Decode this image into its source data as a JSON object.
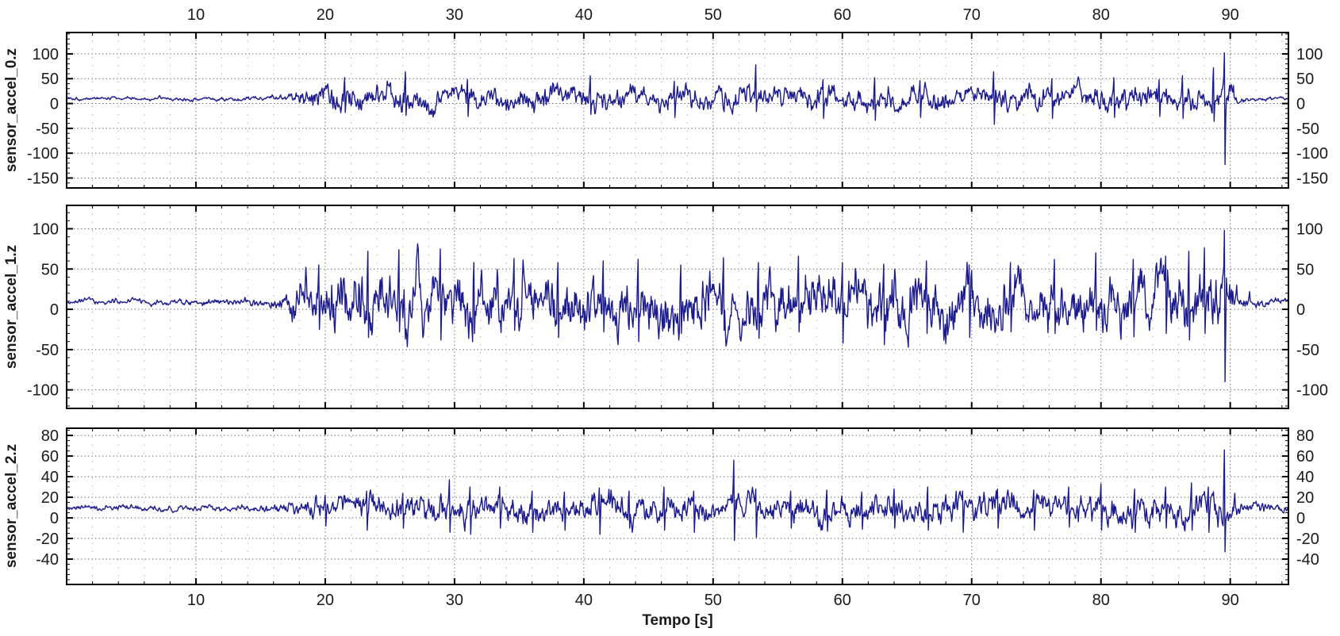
{
  "style": {
    "background": "#ffffff",
    "axis_color": "#000000",
    "text_color": "#1a1a1a",
    "grid_minor_color": "#a3a3a3",
    "grid_major_color": "#5a5a5a",
    "trace_color": "#1b1b8f"
  },
  "chart_data": {
    "type": "line",
    "title": "",
    "xlabel": "Tempo [s]",
    "sample_step_s": 0.05,
    "x": {
      "min": 0,
      "max": 94.5,
      "major_step": 10,
      "minor_step": 2,
      "tick_labels": [
        10,
        20,
        30,
        40,
        50,
        60,
        70,
        80,
        90
      ],
      "top_labels_shown": true,
      "bottom_labels_shown": true
    },
    "panels": [
      {
        "ylabel": "sensor_accel_0.z",
        "ylim": [
          -170,
          143
        ],
        "yticks": [
          100,
          50,
          0,
          -50,
          -100,
          -150
        ],
        "ytick_minor_step": 10,
        "baseline": 10,
        "seed": 101,
        "envelope": [
          [
            0,
            3
          ],
          [
            13,
            3.5
          ],
          [
            15.5,
            4.5
          ],
          [
            17,
            8
          ],
          [
            18.5,
            20
          ],
          [
            21,
            24
          ],
          [
            26,
            22
          ],
          [
            32,
            20
          ],
          [
            38,
            22
          ],
          [
            45,
            21
          ],
          [
            52,
            20
          ],
          [
            58,
            22
          ],
          [
            65,
            21
          ],
          [
            72,
            22
          ],
          [
            80,
            21
          ],
          [
            86,
            22
          ],
          [
            88.5,
            26
          ],
          [
            89.3,
            30
          ],
          [
            90,
            26
          ],
          [
            90.6,
            7
          ],
          [
            91.5,
            3.5
          ],
          [
            94.5,
            3
          ]
        ],
        "events": [
          [
            21.5,
            52,
            -18
          ],
          [
            26.2,
            64,
            -24
          ],
          [
            31,
            48,
            -26
          ],
          [
            40.5,
            56,
            -22
          ],
          [
            47,
            45,
            -28
          ],
          [
            53.3,
            78,
            -16
          ],
          [
            58.5,
            48,
            -30
          ],
          [
            62.5,
            52,
            -34
          ],
          [
            66,
            46,
            -28
          ],
          [
            71.7,
            64,
            -42
          ],
          [
            76.2,
            50,
            -30
          ],
          [
            81,
            52,
            -28
          ],
          [
            84.5,
            48,
            -26
          ],
          [
            86.3,
            56,
            -30
          ],
          [
            88.7,
            72,
            -36
          ],
          [
            89.55,
            102,
            -123
          ],
          [
            90.25,
            36,
            12
          ]
        ]
      },
      {
        "ylabel": "sensor_accel_1.z",
        "ylim": [
          -123,
          129
        ],
        "yticks": [
          100,
          50,
          0,
          -50,
          -100
        ],
        "ytick_minor_step": 10,
        "baseline": 9,
        "seed": 202,
        "envelope": [
          [
            0,
            3
          ],
          [
            13,
            3.5
          ],
          [
            15.5,
            5
          ],
          [
            16.8,
            9
          ],
          [
            18,
            26
          ],
          [
            20,
            32
          ],
          [
            23,
            36
          ],
          [
            27,
            33
          ],
          [
            32,
            31
          ],
          [
            38,
            33
          ],
          [
            44,
            32
          ],
          [
            50,
            33
          ],
          [
            56,
            32
          ],
          [
            62,
            31
          ],
          [
            68,
            30
          ],
          [
            74,
            31
          ],
          [
            80,
            33
          ],
          [
            85,
            34
          ],
          [
            88,
            36
          ],
          [
            89.3,
            40
          ],
          [
            90,
            30
          ],
          [
            90.6,
            10
          ],
          [
            91.5,
            6
          ],
          [
            92.5,
            4
          ],
          [
            94.5,
            3.5
          ]
        ],
        "events": [
          [
            19.5,
            55,
            -25
          ],
          [
            23.3,
            72,
            -35
          ],
          [
            25.7,
            74,
            -28
          ],
          [
            28.9,
            75,
            -38
          ],
          [
            31.5,
            58,
            -30
          ],
          [
            34.6,
            63,
            -26
          ],
          [
            38,
            58,
            -35
          ],
          [
            41.5,
            60,
            -28
          ],
          [
            44.2,
            62,
            -40
          ],
          [
            47.5,
            55,
            -30
          ],
          [
            50.8,
            64,
            -26
          ],
          [
            53.5,
            58,
            -36
          ],
          [
            56.6,
            66,
            -28
          ],
          [
            60,
            58,
            -42
          ],
          [
            63.2,
            56,
            -44
          ],
          [
            66.5,
            60,
            -30
          ],
          [
            69.8,
            55,
            -35
          ],
          [
            73,
            58,
            -28
          ],
          [
            76.4,
            62,
            -30
          ],
          [
            79.6,
            70,
            -26
          ],
          [
            82.5,
            62,
            -34
          ],
          [
            85,
            66,
            -30
          ],
          [
            86.8,
            72,
            -38
          ],
          [
            88,
            76,
            -30
          ],
          [
            89.55,
            98,
            -90
          ],
          [
            90.5,
            30,
            14
          ],
          [
            91.5,
            22,
            10
          ]
        ]
      },
      {
        "ylabel": "sensor_accel_2.z",
        "ylim": [
          -64.6,
          87
        ],
        "yticks": [
          80,
          60,
          40,
          20,
          0,
          -20,
          -40
        ],
        "ytick_minor_step": 5,
        "baseline": 9,
        "seed": 303,
        "envelope": [
          [
            0,
            2.2
          ],
          [
            13,
            2.6
          ],
          [
            15.5,
            3.5
          ],
          [
            17,
            5
          ],
          [
            18.5,
            9
          ],
          [
            21,
            10
          ],
          [
            26,
            12
          ],
          [
            30,
            13
          ],
          [
            34,
            11
          ],
          [
            40,
            12
          ],
          [
            46,
            12
          ],
          [
            52,
            12
          ],
          [
            58,
            11
          ],
          [
            64,
            11
          ],
          [
            70,
            11
          ],
          [
            76,
            12
          ],
          [
            82,
            12
          ],
          [
            86,
            12
          ],
          [
            88.5,
            13
          ],
          [
            89.3,
            14
          ],
          [
            90,
            12
          ],
          [
            90.6,
            6
          ],
          [
            91.5,
            5
          ],
          [
            93,
            4
          ],
          [
            94.5,
            3.5
          ]
        ],
        "events": [
          [
            20,
            22,
            -8
          ],
          [
            23.2,
            26,
            -12
          ],
          [
            26,
            24,
            -10
          ],
          [
            29.6,
            37,
            -14
          ],
          [
            31.2,
            30,
            -16
          ],
          [
            33.5,
            30,
            -10
          ],
          [
            36,
            26,
            -14
          ],
          [
            38.5,
            25,
            -12
          ],
          [
            41.2,
            29,
            -16
          ],
          [
            43.5,
            26,
            -10
          ],
          [
            46.2,
            30,
            -12
          ],
          [
            48.5,
            26,
            -14
          ],
          [
            51.6,
            56,
            -22
          ],
          [
            53.3,
            28,
            -19
          ],
          [
            56,
            26,
            -10
          ],
          [
            58.8,
            27,
            -13
          ],
          [
            61.5,
            25,
            -11
          ],
          [
            64,
            28,
            -10
          ],
          [
            66.6,
            30,
            -12
          ],
          [
            69.3,
            26,
            -14
          ],
          [
            72,
            28,
            -10
          ],
          [
            74.8,
            27,
            -12
          ],
          [
            77.5,
            30,
            -9
          ],
          [
            80,
            33,
            -12
          ],
          [
            82.6,
            28,
            -14
          ],
          [
            85,
            30,
            -10
          ],
          [
            87,
            34,
            -12
          ],
          [
            88.3,
            30,
            -14
          ],
          [
            89.55,
            66,
            -33
          ],
          [
            90.35,
            24,
            10
          ]
        ]
      }
    ]
  }
}
